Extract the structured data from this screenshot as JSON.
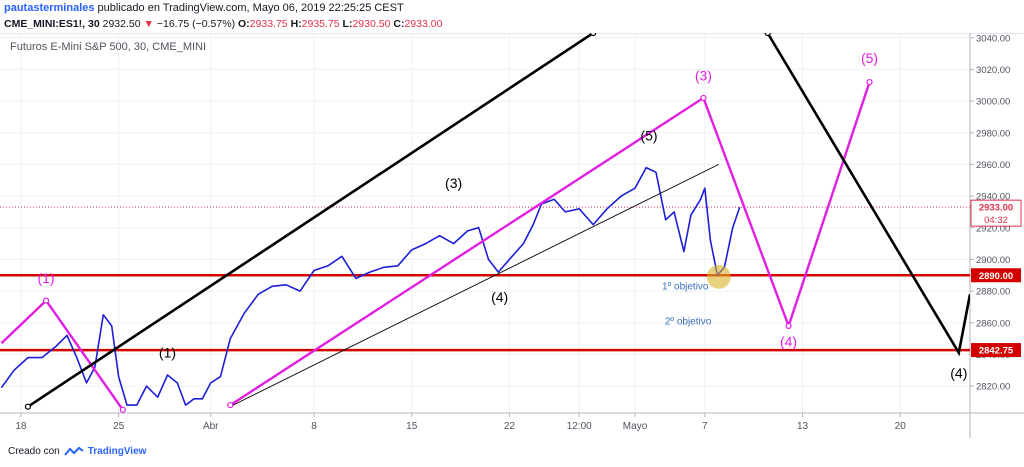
{
  "header": {
    "author": "pautasterminales",
    "published": "publicado en TradingView.com, Mayo 06, 2019 22:25:25 CEST",
    "symbol": "CME_MINI:ES1!, 30",
    "last": "2932.50",
    "change": "−16.75 (−0.57%)",
    "o_label": "O:",
    "o": "2933.75",
    "h_label": "H:",
    "h": "2935.75",
    "l_label": "L:",
    "l": "2930.50",
    "c_label": "C:",
    "c": "2933.00"
  },
  "chart_title": "Futuros E-Mini S&P 500, 30, CME_MINI",
  "footer": {
    "created_with": "Creado con",
    "brand": "TradingView"
  },
  "colors": {
    "candle": "#1c1fd6",
    "magenta": "#e21ee2",
    "black": "#000000",
    "support": "#d40000",
    "highlight": "#d8b32a"
  },
  "chart_data": {
    "type": "line",
    "title": "Futuros E-Mini S&P 500, 30, CME_MINI",
    "x_ticks": [
      "18",
      "25",
      "Abr",
      "8",
      "15",
      "22",
      "12:00",
      "Mayo",
      "7",
      "13",
      "20"
    ],
    "x_tick_pos": [
      0,
      7,
      13.6,
      21,
      28,
      35,
      40,
      44,
      49,
      56,
      63
    ],
    "x_range": [
      -1.5,
      68
    ],
    "y_range": [
      2803,
      3043
    ],
    "y_ticks": [
      2820,
      2840,
      2860,
      2880,
      2900,
      2920,
      2940,
      2960,
      2980,
      3000,
      3020,
      3040
    ],
    "current_price": {
      "value": 2933,
      "label": "2933.00",
      "countdown": "04:32"
    },
    "support_levels": [
      {
        "value": 2890,
        "label": "2890.00"
      },
      {
        "value": 2842.75,
        "label": "2842.75"
      }
    ],
    "price_path": [
      [
        -1.4,
        2819
      ],
      [
        -0.5,
        2830
      ],
      [
        0.5,
        2838
      ],
      [
        1.5,
        2838
      ],
      [
        2.5,
        2845
      ],
      [
        3.3,
        2852
      ],
      [
        4.0,
        2838
      ],
      [
        4.7,
        2822
      ],
      [
        5.3,
        2832
      ],
      [
        5.9,
        2865
      ],
      [
        6.5,
        2858
      ],
      [
        7.0,
        2826
      ],
      [
        7.6,
        2808
      ],
      [
        8.3,
        2808
      ],
      [
        9.0,
        2820
      ],
      [
        9.8,
        2813
      ],
      [
        10.5,
        2827
      ],
      [
        11.2,
        2822
      ],
      [
        11.8,
        2808
      ],
      [
        12.4,
        2812
      ],
      [
        13.0,
        2812
      ],
      [
        13.6,
        2822
      ],
      [
        14.3,
        2826
      ],
      [
        15.0,
        2850
      ],
      [
        16.0,
        2866
      ],
      [
        17.0,
        2878
      ],
      [
        18.0,
        2883
      ],
      [
        19.0,
        2884
      ],
      [
        20.0,
        2880
      ],
      [
        21.0,
        2893
      ],
      [
        22.0,
        2896
      ],
      [
        23.0,
        2902
      ],
      [
        24.0,
        2888
      ],
      [
        25.0,
        2892
      ],
      [
        26.0,
        2895
      ],
      [
        27.0,
        2896
      ],
      [
        28.0,
        2906
      ],
      [
        29.0,
        2910
      ],
      [
        30.0,
        2915
      ],
      [
        31.0,
        2910
      ],
      [
        32.0,
        2918
      ],
      [
        32.8,
        2920
      ],
      [
        33.5,
        2900
      ],
      [
        34.2,
        2892
      ],
      [
        35.0,
        2900
      ],
      [
        36.0,
        2910
      ],
      [
        36.7,
        2922
      ],
      [
        37.3,
        2935
      ],
      [
        38.2,
        2938
      ],
      [
        39.0,
        2930
      ],
      [
        40.0,
        2932
      ],
      [
        41.0,
        2922
      ],
      [
        42.0,
        2932
      ],
      [
        43.0,
        2940
      ],
      [
        44.0,
        2945
      ],
      [
        44.8,
        2958
      ],
      [
        45.5,
        2955
      ],
      [
        46.2,
        2925
      ],
      [
        46.8,
        2930
      ],
      [
        47.5,
        2905
      ],
      [
        48.0,
        2928
      ],
      [
        48.7,
        2938
      ],
      [
        49.0,
        2945
      ],
      [
        49.4,
        2912
      ],
      [
        49.9,
        2890
      ],
      [
        50.4,
        2895
      ],
      [
        51.0,
        2920
      ],
      [
        51.5,
        2933
      ]
    ],
    "waves": [
      {
        "name": "magenta",
        "points": [
          [
            -1.4,
            2847
          ],
          [
            1.8,
            2874
          ],
          [
            7.3,
            2805
          ]
        ]
      },
      {
        "name": "magenta",
        "points": [
          [
            15.0,
            2808
          ],
          [
            48.9,
            3002
          ],
          [
            55.0,
            2858
          ],
          [
            60.8,
            3012
          ]
        ]
      },
      {
        "name": "black",
        "points": [
          [
            0.5,
            2807
          ],
          [
            41.0,
            3043
          ]
        ]
      },
      {
        "name": "black",
        "points": [
          [
            53.5,
            3043
          ],
          [
            67.2,
            2841
          ],
          [
            68.0,
            2878
          ]
        ]
      },
      {
        "name": "black-thin",
        "points": [
          [
            15.2,
            2808
          ],
          [
            50.0,
            2960
          ]
        ]
      }
    ],
    "wave_labels": [
      {
        "text": "(1)",
        "x": 1.8,
        "y": 2885,
        "color": "#e21ee2"
      },
      {
        "text": "(1)",
        "x": 10.5,
        "y": 2838,
        "color": "#000000"
      },
      {
        "text": "(3)",
        "x": 31.0,
        "y": 2945,
        "color": "#000000"
      },
      {
        "text": "(4)",
        "x": 34.3,
        "y": 2873,
        "color": "#000000"
      },
      {
        "text": "(3)",
        "x": 48.9,
        "y": 3013,
        "color": "#e21ee2"
      },
      {
        "text": "(5)",
        "x": 45.0,
        "y": 2975,
        "color": "#000000"
      },
      {
        "text": "(4)",
        "x": 55.0,
        "y": 2845,
        "color": "#e21ee2"
      },
      {
        "text": "(5)",
        "x": 60.8,
        "y": 3024,
        "color": "#e21ee2"
      },
      {
        "text": "(4)",
        "x": 67.2,
        "y": 2825,
        "color": "#000000"
      }
    ],
    "annotations": [
      {
        "text": "1º objetivo",
        "x": 47.6,
        "y": 2881,
        "color": "#3b70b8"
      },
      {
        "text": "2º objetivo",
        "x": 47.8,
        "y": 2859,
        "color": "#3b70b8"
      }
    ],
    "highlight": {
      "x": 50.0,
      "y": 2889
    }
  }
}
